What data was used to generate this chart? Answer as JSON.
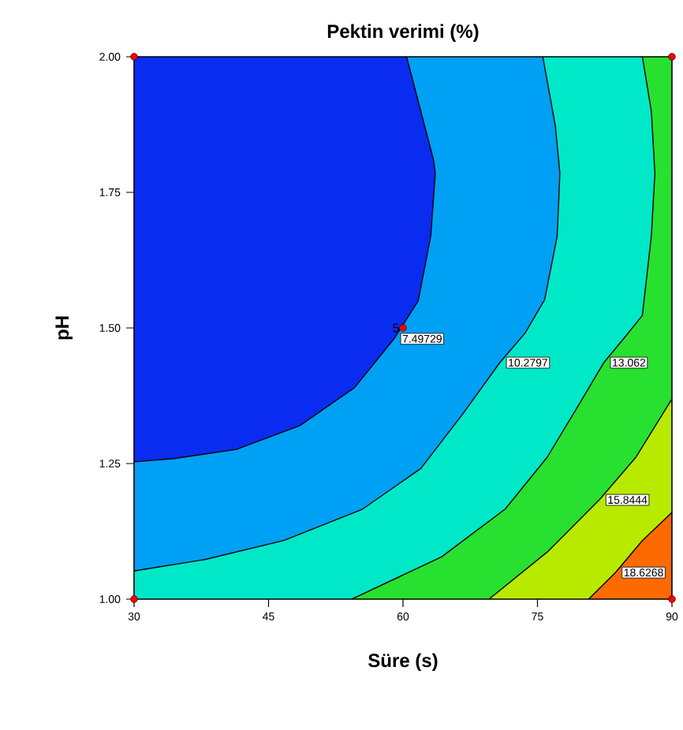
{
  "chart_data": {
    "type": "line",
    "title": "Pektin verimi (%)",
    "xlabel": "Süre (s)",
    "ylabel": "pH",
    "xlim": [
      30,
      90
    ],
    "xticks": [
      30,
      45,
      60,
      75,
      90
    ],
    "ylim": [
      1,
      2
    ],
    "yticks": [
      {
        "value": 1,
        "label": "1.00"
      },
      {
        "value": 1.25,
        "label": "1.25"
      },
      {
        "value": 1.5,
        "label": "1.50"
      },
      {
        "value": 1.75,
        "label": "1.75"
      },
      {
        "value": 2,
        "label": "2.00"
      }
    ],
    "grid": false,
    "series": [
      {
        "name": "7.49729",
        "color": "#000000",
        "x": [
          60.4,
          63.4,
          63.6,
          63.1,
          61.7,
          59.0,
          54.6,
          48.5,
          41.4,
          34.4,
          30
        ],
        "values": [
          2.0,
          1.81,
          1.785,
          1.67,
          1.55,
          1.48,
          1.39,
          1.32,
          1.276,
          1.259,
          1.253
        ]
      },
      {
        "name": "10.2797",
        "color": "#000000",
        "x": [
          75.6,
          77.0,
          77.5,
          77.2,
          75.8,
          73.6,
          70.8,
          66.6,
          62.0,
          55.5,
          46.7,
          37.9,
          30
        ],
        "values": [
          2.0,
          1.872,
          1.785,
          1.669,
          1.552,
          1.49,
          1.436,
          1.34,
          1.241,
          1.166,
          1.108,
          1.073,
          1.052
        ]
      },
      {
        "name": "13.062",
        "color": "#000000",
        "x": [
          86.7,
          87.7,
          88.1,
          87.7,
          86.7,
          84.6,
          82.4,
          79.6,
          76.1,
          71.4,
          64.3,
          54.3
        ],
        "values": [
          2.0,
          1.9,
          1.785,
          1.669,
          1.523,
          1.48,
          1.436,
          1.358,
          1.262,
          1.166,
          1.078,
          1.0
        ]
      },
      {
        "name": "15.8444",
        "color": "#000000",
        "x": [
          90,
          86.0,
          81.9,
          76.1,
          69.6
        ],
        "values": [
          1.369,
          1.262,
          1.183,
          1.087,
          1.0
        ]
      },
      {
        "name": "18.6268",
        "color": "#000000",
        "x": [
          90,
          86.7,
          83.7,
          80.7
        ],
        "values": [
          1.16,
          1.108,
          1.049,
          1.0
        ]
      },
      {
        "type": "scatter",
        "color": "#ff0000",
        "marker": "circle",
        "x": [
          30,
          30,
          90,
          90,
          60
        ],
        "values": [
          1,
          2,
          1,
          2,
          1.5
        ]
      }
    ],
    "annotations": [
      {
        "text": "5",
        "x": 60,
        "y": 1.5
      }
    ]
  }
}
